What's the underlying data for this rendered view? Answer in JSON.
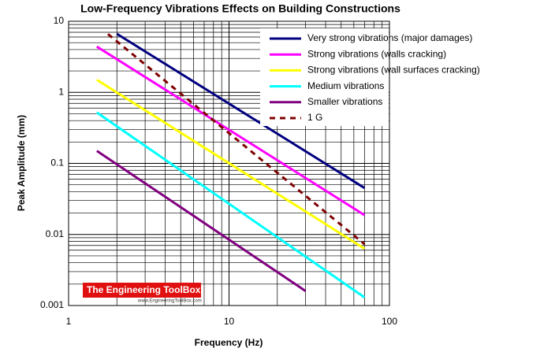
{
  "chart_data": {
    "type": "line",
    "title": "Low-Frequency Vibrations Effects on Building Constructions",
    "x_label": "Frequency (Hz)",
    "y_label": "Peak Amplitude (mm)",
    "log_x": true,
    "log_y": true,
    "grid": true,
    "minor_grid": true,
    "legend": "upper right",
    "xlim": [
      1,
      100
    ],
    "xticks": [
      1,
      10,
      100
    ],
    "ylim": [
      0.001,
      10
    ],
    "yticks": [
      0.001,
      0.01,
      0.1,
      1,
      10
    ],
    "series": [
      {
        "name": "Very strong vibrations (major damages)",
        "color": "#000080",
        "x": [
          2,
          70
        ],
        "values": [
          6.65,
          0.045
        ]
      },
      {
        "name": "Strong vibrations (walls cracking)",
        "color": "#ff00ff",
        "x": [
          1.5,
          70
        ],
        "values": [
          4.4,
          0.0187
        ]
      },
      {
        "name": "Strong vibrations (wall surfaces cracking)",
        "color": "#ffff00",
        "x": [
          1.5,
          70
        ],
        "values": [
          1.5,
          0.0063
        ]
      },
      {
        "name": "Medium vibrations",
        "color": "#00ffff",
        "x": [
          1.5,
          70
        ],
        "values": [
          0.52,
          0.0013
        ]
      },
      {
        "name": "Smaller vibrations",
        "color": "#800080",
        "x": [
          1.5,
          30
        ],
        "values": [
          0.15,
          0.0016
        ]
      },
      {
        "name": "1 G",
        "color": "#800000",
        "dashed": true,
        "x": [
          1.76,
          70
        ],
        "values": [
          6.6,
          0.0073
        ]
      }
    ],
    "watermark": {
      "title": "The Engineering ToolBox",
      "url": "www.EngineeringToolBox.com"
    }
  }
}
